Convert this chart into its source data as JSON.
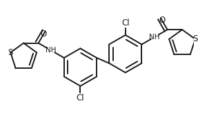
{
  "bg_color": "#ffffff",
  "line_color": "#1a1a1a",
  "line_width": 1.4,
  "font_size": 8.5,
  "figsize": [
    2.87,
    1.73
  ],
  "dpi": 100,
  "xlim": [
    0,
    287
  ],
  "ylim": [
    0,
    173
  ]
}
